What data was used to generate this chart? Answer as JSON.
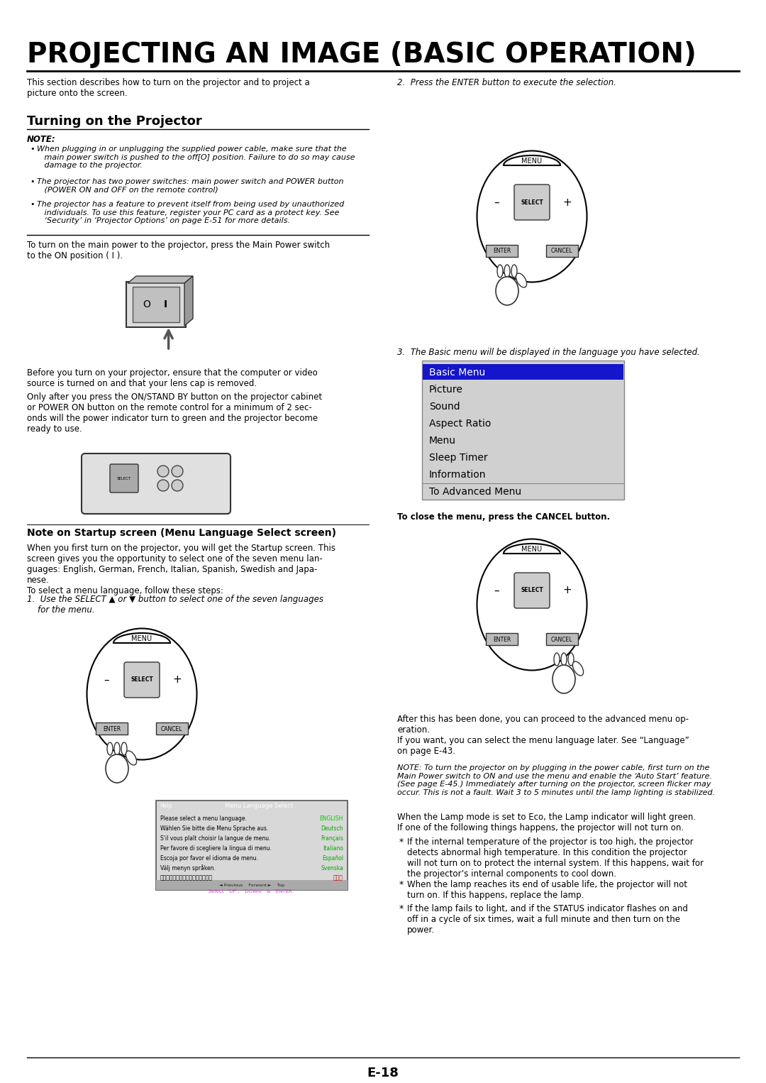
{
  "title": "PROJECTING AN IMAGE (BASIC OPERATION)",
  "bg_color": "#ffffff",
  "page_number": "E-18",
  "intro_text": "This section describes how to turn on the projector and to project a\npicture onto the screen.",
  "step2_label": "2.  Press the ENTER button to execute the selection.",
  "section_title": "Turning on the Projector",
  "note_label": "NOTE:",
  "note_b1": "When plugging in or unplugging the supplied power cable, make sure that the\n   main power switch is pushed to the off[O] position. Failure to do so may cause\n   damage to the projector.",
  "note_b2": "The projector has two power switches: main power switch and POWER button\n   (POWER ON and OFF on the remote control)",
  "note_b3": "The projector has a feature to prevent itself from being used by unauthorized\n   individuals. To use this feature, register your PC card as a protect key. See\n   ‘Security’ in ‘Projector Options’ on page E-51 for more details.",
  "power_text": "To turn on the main power to the projector, press the Main Power switch\nto the ON position ( I ).",
  "before_text1": "Before you turn on your projector, ensure that the computer or video\nsource is turned on and that your lens cap is removed.",
  "before_text2": "Only after you press the ON/STAND BY button on the projector cabinet\nor POWER ON button on the remote control for a minimum of 2 sec-\nonds will the power indicator turn to green and the projector become\nready to use.",
  "startup_title": "Note on Startup screen (Menu Language Select screen)",
  "startup_body": "When you first turn on the projector, you will get the Startup screen. This\nscreen gives you the opportunity to select one of the seven menu lan-\nguages: English, German, French, Italian, Spanish, Swedish and Japa-\nnese.\nTo select a menu language, follow these steps:",
  "step1_label": "1.  Use the SELECT ▲ or ▼ button to select one of the seven languages\n    for the menu.",
  "step3_label": "3.  The Basic menu will be displayed in the language you have selected.",
  "menu_items": [
    "Basic Menu",
    "Picture",
    "Sound",
    "Aspect Ratio",
    "Menu",
    "Sleep Timer",
    "Information",
    "To Advanced Menu"
  ],
  "close_menu_text": "To close the menu, press the CANCEL button.",
  "after_text": "After this has been done, you can proceed to the advanced menu op-\neration.\nIf you want, you can select the menu language later. See “Language”\non page E-43.",
  "note2_text": "NOTE: To turn the projector on by plugging in the power cable, first turn on the\nMain Power switch to ON and use the menu and enable the ‘Auto Start’ feature.\n(See page E-45.) Immediately after turning on the projector, screen flicker may\noccur. This is not a fault. Wait 3 to 5 minutes until the lamp lighting is stabilized.",
  "lamp_text": "When the Lamp mode is set to Eco, the Lamp indicator will light green.\nIf one of the following things happens, the projector will not turn on.",
  "bullet1": "If the internal temperature of the projector is too high, the projector\ndetects abnormal high temperature. In this condition the projector\nwill not turn on to protect the internal system. If this happens, wait for\nthe projector’s internal components to cool down.",
  "bullet2": "When the lamp reaches its end of usable life, the projector will not\nturn on. If this happens, replace the lamp.",
  "bullet3": "If the lamp fails to light, and if the STATUS indicator flashes on and\noff in a cycle of six times, wait a full minute and then turn on the\npower.",
  "lang_rows": [
    [
      "Please select a menu language.",
      "ENGLISH",
      "#00cc00"
    ],
    [
      "Wählen Sie bitte die Menu Sprache aus.",
      "Deutsch",
      "#00aa00"
    ],
    [
      "S'il vous plaît choisir la langue de menu.",
      "Français",
      "#00aa00"
    ],
    [
      "Per favore di scegliere la lingua di menu.",
      "Italiano",
      "#00aa00"
    ],
    [
      "Escoja por favor el idioma de menu.",
      "Español",
      "#00aa00"
    ],
    [
      "Välj menyn språken.",
      "Svenska",
      "#00aa00"
    ],
    [
      "メニュー言語を選択してください。",
      "日本語",
      "#cc0000"
    ]
  ]
}
